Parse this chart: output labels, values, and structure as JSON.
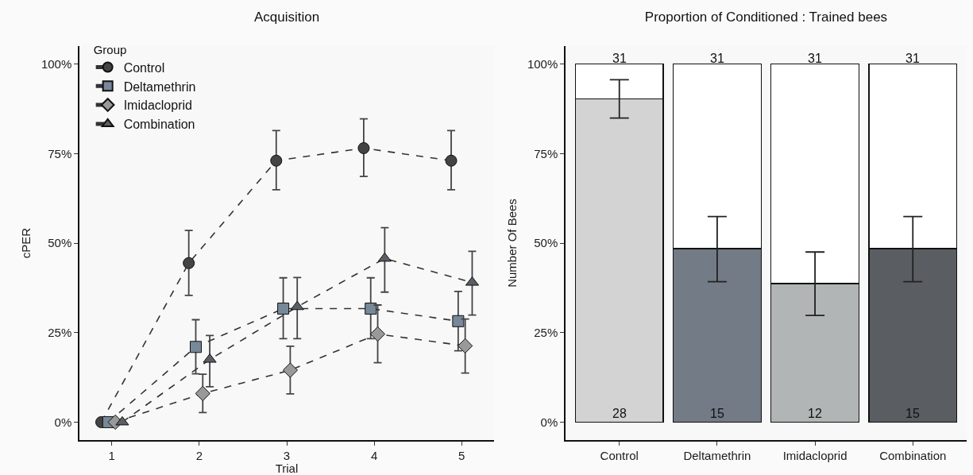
{
  "chart_data": [
    {
      "type": "line",
      "title": "Acquisition",
      "xlabel": "Trial",
      "ylabel": "cPER",
      "legend_title": "Group",
      "legend": "top left",
      "grid": false,
      "line_style": "dashed",
      "xlim": [
        0.63,
        5.37
      ],
      "xticks": [
        1,
        2,
        3,
        4,
        5
      ],
      "ylim": [
        -5,
        105
      ],
      "yticks": [
        {
          "value": 0,
          "label": "0%"
        },
        {
          "value": 25,
          "label": "25%"
        },
        {
          "value": 50,
          "label": "50%"
        },
        {
          "value": 75,
          "label": "75%"
        },
        {
          "value": 100,
          "label": "100%"
        }
      ],
      "series": [
        {
          "name": "Control",
          "color": "#444444",
          "marker": "circle",
          "x": [
            0.88,
            1.88,
            2.88,
            3.88,
            4.88
          ],
          "values": [
            0,
            44.4,
            73.0,
            76.5,
            73.0
          ],
          "errors": [
            null,
            [
              35.4,
              53.5
            ],
            [
              64.9,
              81.4
            ],
            [
              68.6,
              84.7
            ],
            [
              64.9,
              81.4
            ]
          ]
        },
        {
          "name": "Deltamethrin",
          "color": "#778899",
          "marker": "square",
          "x": [
            0.96,
            1.96,
            2.96,
            3.96,
            4.96
          ],
          "values": [
            0,
            21.0,
            31.7,
            31.7,
            28.2
          ],
          "errors": [
            null,
            [
              13.5,
              28.6
            ],
            [
              23.3,
              40.3
            ],
            [
              23.3,
              40.3
            ],
            [
              19.9,
              36.5
            ]
          ]
        },
        {
          "name": "Imidacloprid",
          "color": "#999999",
          "marker": "diamond",
          "x": [
            1.04,
            2.04,
            3.04,
            4.04,
            5.04
          ],
          "values": [
            0,
            8.0,
            14.5,
            24.6,
            21.3
          ],
          "errors": [
            null,
            [
              2.7,
              13.4
            ],
            [
              7.9,
              21.2
            ],
            [
              16.6,
              32.7
            ],
            [
              13.7,
              28.8
            ]
          ]
        },
        {
          "name": "Combination",
          "color": "#5a5f66",
          "marker": "triangle",
          "x": [
            1.12,
            2.12,
            3.12,
            4.12,
            5.12
          ],
          "values": [
            0,
            17.5,
            32.2,
            45.7,
            39.0
          ],
          "errors": [
            null,
            [
              9.9,
              24.2
            ],
            [
              23.3,
              40.4
            ],
            [
              36.3,
              54.3
            ],
            [
              29.9,
              47.7
            ]
          ]
        }
      ]
    },
    {
      "type": "bar",
      "title": "Proportion of Conditioned : Trained bees",
      "ylabel": "Number Of Bees",
      "stacked": true,
      "grid": false,
      "categories": [
        "Control",
        "Deltamethrin",
        "Imidacloprid",
        "Combination"
      ],
      "ylim": [
        -5,
        105
      ],
      "yticks": [
        {
          "value": 0,
          "label": "0%"
        },
        {
          "value": 25,
          "label": "25%"
        },
        {
          "value": 50,
          "label": "50%"
        },
        {
          "value": 75,
          "label": "75%"
        },
        {
          "value": 100,
          "label": "100%"
        }
      ],
      "series": [
        {
          "colors": [
            "#d3d3d3",
            "#737b86",
            "#b1b5b5",
            "#5a5e62"
          ],
          "values": [
            90.3,
            48.4,
            38.7,
            48.4
          ],
          "errors": [
            [
              84.9,
              95.6
            ],
            [
              39.2,
              57.4
            ],
            [
              29.8,
              47.5
            ],
            [
              39.2,
              57.4
            ]
          ]
        },
        {
          "colors": [
            "#ffffff",
            "#ffffff",
            "#ffffff",
            "#ffffff"
          ],
          "values": [
            9.7,
            51.6,
            61.3,
            51.6
          ]
        }
      ],
      "annotations": [
        {
          "text": "28",
          "x": "Control",
          "y": 0
        },
        {
          "text": "15",
          "x": "Deltamethrin",
          "y": 0
        },
        {
          "text": "12",
          "x": "Imidacloprid",
          "y": 0
        },
        {
          "text": "15",
          "x": "Combination",
          "y": 0
        },
        {
          "text": "31",
          "x": "Control",
          "y": 100
        },
        {
          "text": "31",
          "x": "Deltamethrin",
          "y": 100
        },
        {
          "text": "31",
          "x": "Imidacloprid",
          "y": 100
        },
        {
          "text": "31",
          "x": "Combination",
          "y": 100
        }
      ]
    }
  ]
}
